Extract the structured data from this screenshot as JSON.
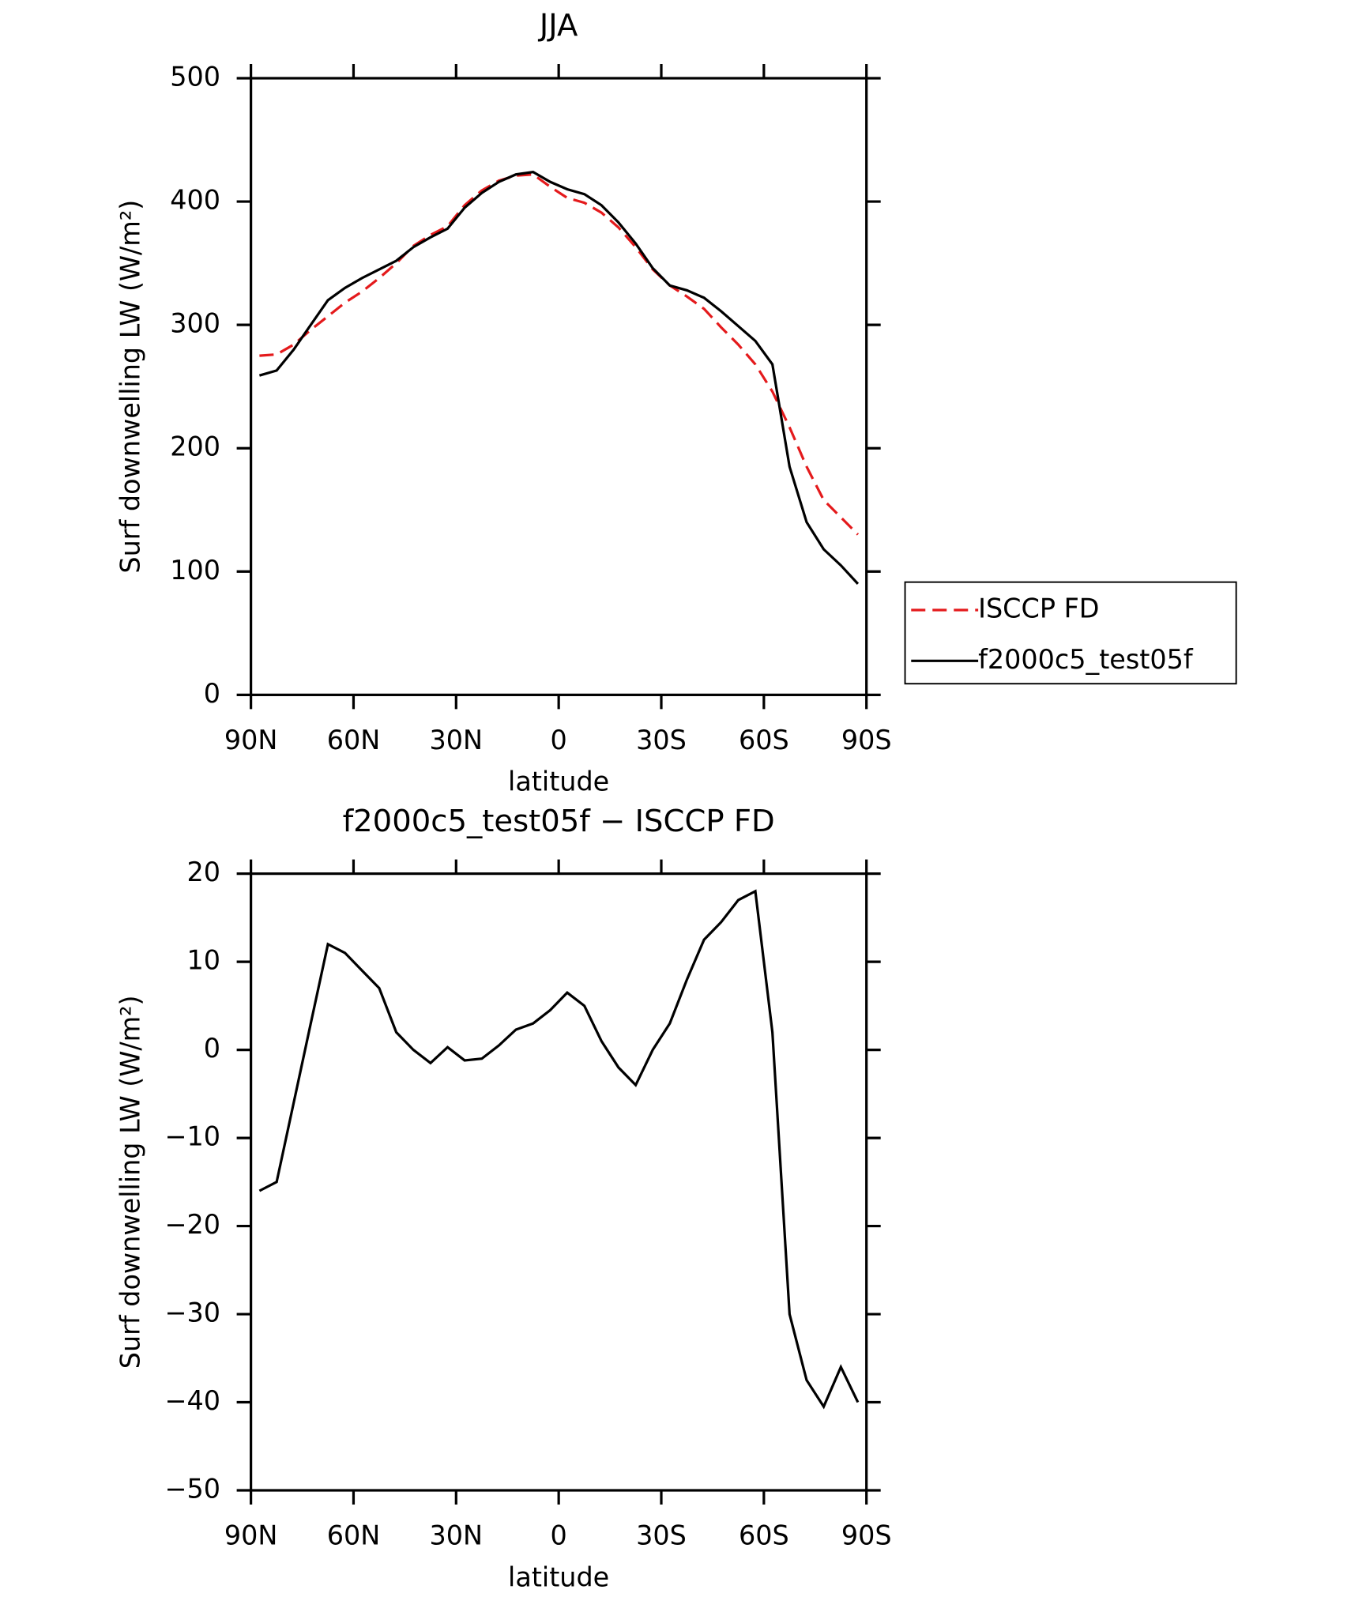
{
  "chart_data": [
    {
      "type": "line",
      "title": "JJA",
      "xlabel": "latitude",
      "ylabel": "Surf downwelling LW (W/m²)",
      "x": [
        87.5,
        82.5,
        77.5,
        72.5,
        67.5,
        62.5,
        57.5,
        52.5,
        47.5,
        42.5,
        37.5,
        32.5,
        27.5,
        22.5,
        17.5,
        12.5,
        7.5,
        2.5,
        -2.5,
        -7.5,
        -12.5,
        -17.5,
        -22.5,
        -27.5,
        -32.5,
        -37.5,
        -42.5,
        -47.5,
        -52.5,
        -57.5,
        -62.5,
        -67.5,
        -72.5,
        -77.5,
        -82.5,
        -87.5
      ],
      "series": [
        {
          "name": "ISCCP FD",
          "color": "#e41a1c",
          "style": "dashed",
          "values": [
            275,
            276,
            284,
            296,
            307,
            318,
            327,
            338,
            350,
            364,
            373,
            380,
            397,
            409,
            417,
            421,
            422,
            412,
            403,
            399,
            391,
            379,
            363,
            345,
            332,
            323,
            313,
            298,
            284,
            268,
            246,
            217,
            185,
            158,
            144,
            130
          ]
        },
        {
          "name": "f2000c5_test05f",
          "color": "#000000",
          "style": "solid",
          "values": [
            259,
            263,
            280,
            300,
            320,
            330,
            338,
            345,
            352,
            363,
            371,
            378,
            395,
            407,
            416,
            422,
            424,
            416,
            410,
            406,
            397,
            383,
            366,
            346,
            332,
            328,
            322,
            311,
            299,
            287,
            268,
            185,
            140,
            118,
            105,
            90
          ]
        }
      ],
      "xlim": [
        90,
        -90
      ],
      "xticks": [
        {
          "value": 90,
          "label": "90N"
        },
        {
          "value": 60,
          "label": "60N"
        },
        {
          "value": 30,
          "label": "30N"
        },
        0,
        {
          "value": -30,
          "label": "30S"
        },
        {
          "value": -60,
          "label": "60S"
        },
        {
          "value": -90,
          "label": "90S"
        }
      ],
      "ylim": [
        0,
        500
      ],
      "yticks": [
        0,
        100,
        200,
        300,
        400,
        500
      ],
      "legend": "right"
    },
    {
      "type": "line",
      "title": "f2000c5_test05f − ISCCP FD",
      "xlabel": "latitude",
      "ylabel": "Surf downwelling LW (W/m²)",
      "x": [
        87.5,
        82.5,
        77.5,
        72.5,
        67.5,
        62.5,
        57.5,
        52.5,
        47.5,
        42.5,
        37.5,
        32.5,
        27.5,
        22.5,
        17.5,
        12.5,
        7.5,
        2.5,
        -2.5,
        -7.5,
        -12.5,
        -17.5,
        -22.5,
        -27.5,
        -32.5,
        -37.5,
        -42.5,
        -47.5,
        -52.5,
        -57.5,
        -62.5,
        -67.5,
        -72.5,
        -77.5,
        -82.5,
        -87.5
      ],
      "series": [
        {
          "color": "#000000",
          "style": "solid",
          "values": [
            -16,
            -15,
            -6,
            3,
            12,
            11,
            9,
            7,
            2,
            0,
            -1.5,
            0.3,
            -1.2,
            -1,
            0.5,
            2.3,
            3,
            4.5,
            6.5,
            5,
            1,
            -2,
            -4,
            0,
            3,
            8,
            12.5,
            14.5,
            17,
            18,
            2,
            -30,
            -37.5,
            -40.5,
            -36,
            -40
          ]
        }
      ],
      "xlim": [
        90,
        -90
      ],
      "xticks": [
        {
          "value": 90,
          "label": "90N"
        },
        {
          "value": 60,
          "label": "60N"
        },
        {
          "value": 30,
          "label": "30N"
        },
        0,
        {
          "value": -30,
          "label": "30S"
        },
        {
          "value": -60,
          "label": "60S"
        },
        {
          "value": -90,
          "label": "90S"
        }
      ],
      "ylim": [
        -50,
        20
      ],
      "yticks": [
        {
          "value": -50,
          "label": "−50"
        },
        {
          "value": -40,
          "label": "−40"
        },
        {
          "value": -30,
          "label": "−30"
        },
        {
          "value": -20,
          "label": "−20"
        },
        {
          "value": -10,
          "label": "−10"
        },
        0,
        10,
        20
      ]
    }
  ]
}
